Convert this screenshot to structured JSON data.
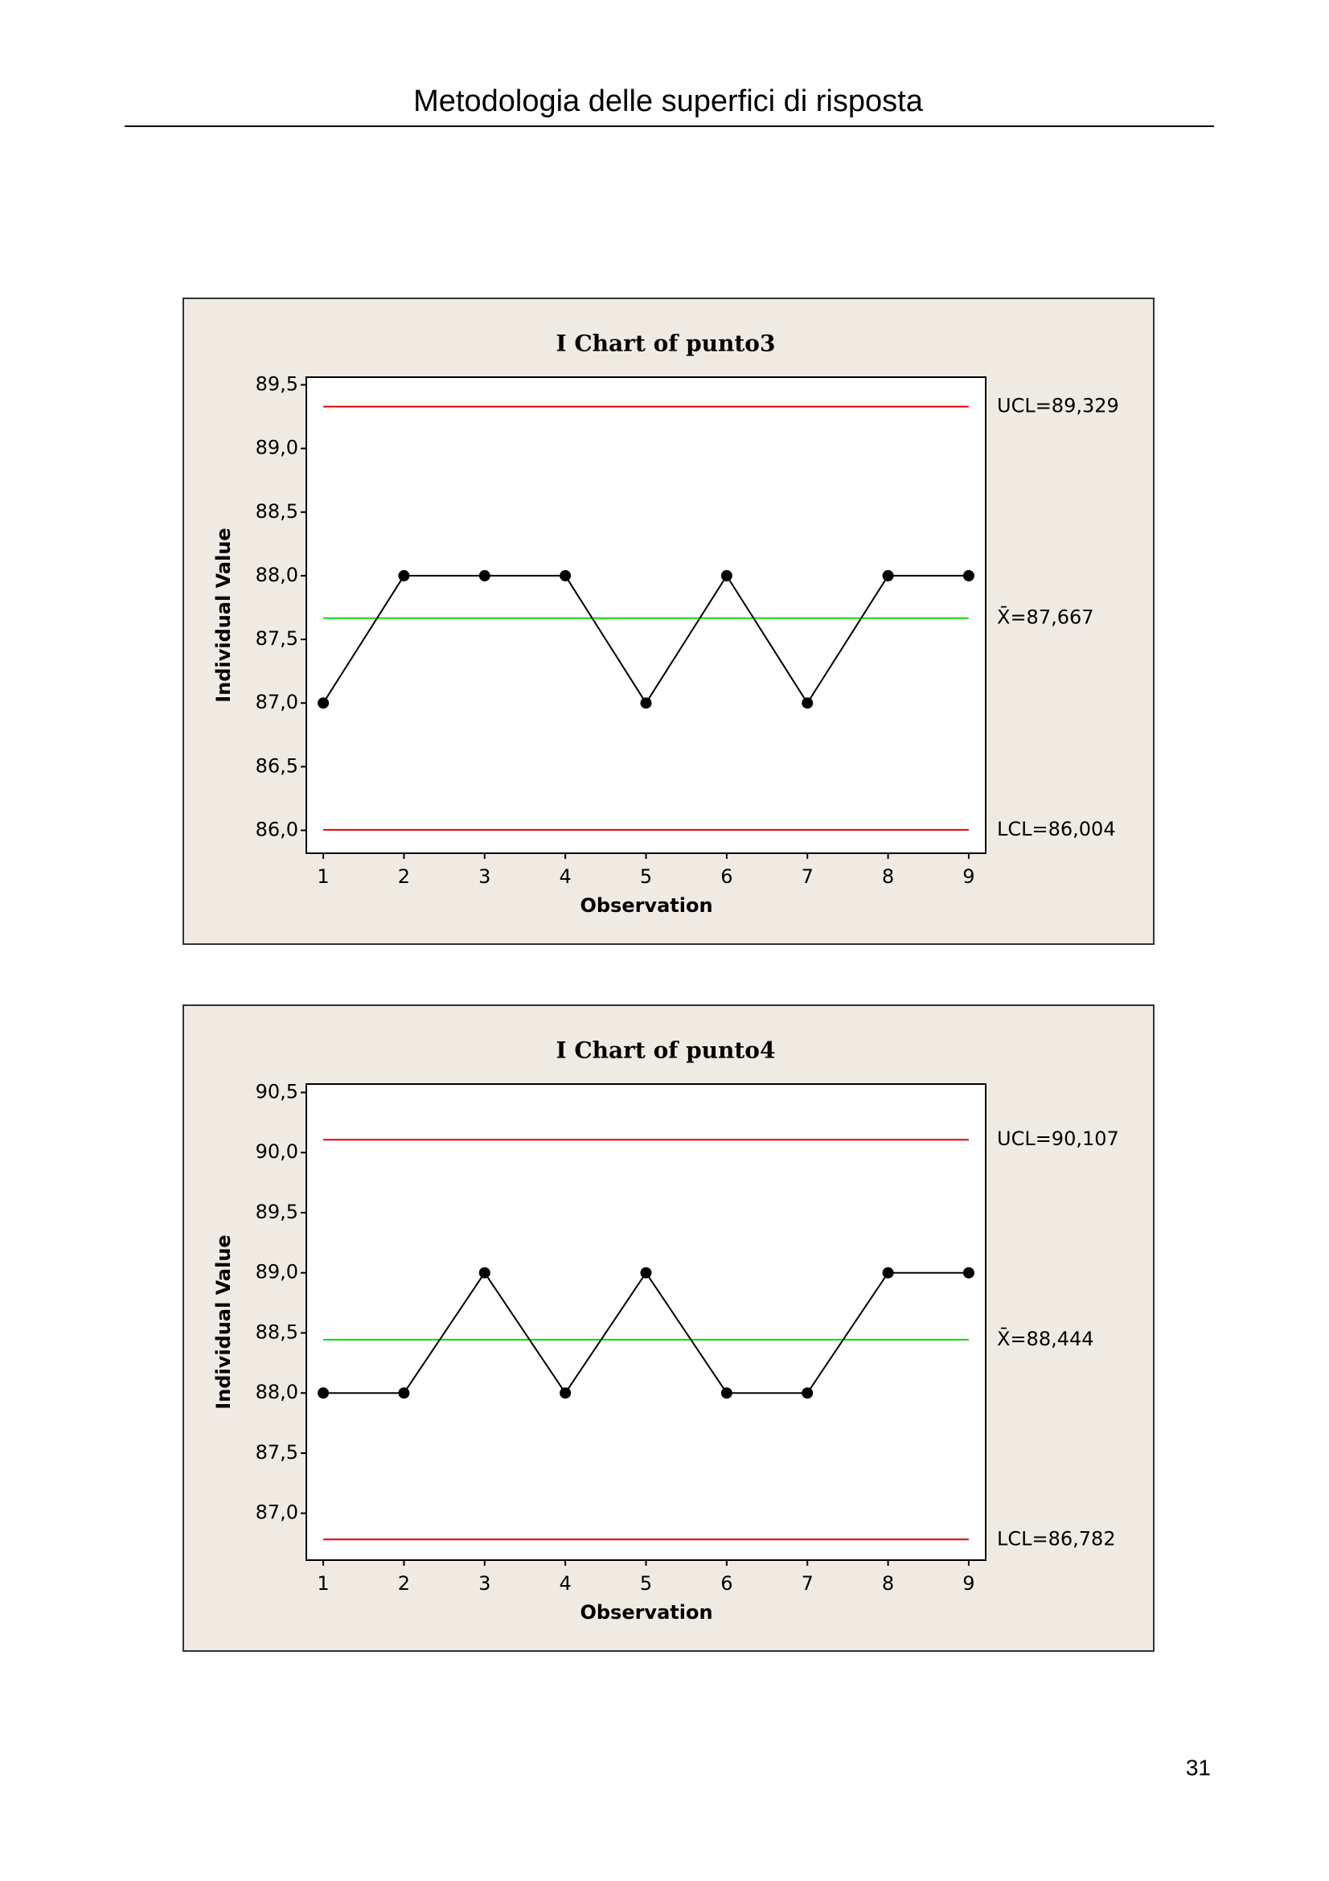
{
  "header": {
    "title": "Metodologia delle superfici di risposta"
  },
  "page_number": "31",
  "chart_data": [
    {
      "type": "line",
      "title": "I Chart of punto3",
      "x_label": "Observation",
      "y_label": "Individual Value",
      "x": [
        1,
        2,
        3,
        4,
        5,
        6,
        7,
        8,
        9
      ],
      "values": [
        87,
        88,
        88,
        88,
        87,
        88,
        87,
        88,
        88
      ],
      "color": "#000000",
      "xlim": [
        0.79,
        9.21
      ],
      "xticks": [
        1,
        2,
        3,
        4,
        5,
        6,
        7,
        8,
        9
      ],
      "ylim": [
        85.82,
        89.56
      ],
      "yticks": [
        {
          "value": 86.0,
          "label": "86,0"
        },
        {
          "value": 86.5,
          "label": "86,5"
        },
        {
          "value": 87.0,
          "label": "87,0"
        },
        {
          "value": 87.5,
          "label": "87,5"
        },
        {
          "value": 88.0,
          "label": "88,0"
        },
        {
          "value": 88.5,
          "label": "88,5"
        },
        {
          "value": 89.0,
          "label": "89,0"
        },
        {
          "value": 89.5,
          "label": "89,5"
        }
      ],
      "control_lines": [
        {
          "value": 89.329,
          "label": "UCL=89,329",
          "color": "#e00000"
        },
        {
          "value": 87.667,
          "label": "X̄=87,667",
          "color": "#00e000"
        },
        {
          "value": 86.004,
          "label": "LCL=86,004",
          "color": "#e00000"
        }
      ]
    },
    {
      "type": "line",
      "title": "I Chart of punto4",
      "x_label": "Observation",
      "y_label": "Individual Value",
      "x": [
        1,
        2,
        3,
        4,
        5,
        6,
        7,
        8,
        9
      ],
      "values": [
        88,
        88,
        89,
        88,
        89,
        88,
        88,
        89,
        89
      ],
      "color": "#000000",
      "xlim": [
        0.79,
        9.21
      ],
      "xticks": [
        1,
        2,
        3,
        4,
        5,
        6,
        7,
        8,
        9
      ],
      "ylim": [
        86.61,
        90.57
      ],
      "yticks": [
        {
          "value": 87.0,
          "label": "87,0"
        },
        {
          "value": 87.5,
          "label": "87,5"
        },
        {
          "value": 88.0,
          "label": "88,0"
        },
        {
          "value": 88.5,
          "label": "88,5"
        },
        {
          "value": 89.0,
          "label": "89,0"
        },
        {
          "value": 89.5,
          "label": "89,5"
        },
        {
          "value": 90.0,
          "label": "90,0"
        },
        {
          "value": 90.5,
          "label": "90,5"
        }
      ],
      "control_lines": [
        {
          "value": 90.107,
          "label": "UCL=90,107",
          "color": "#e00000"
        },
        {
          "value": 88.444,
          "label": "X̄=88,444",
          "color": "#00e000"
        },
        {
          "value": 86.782,
          "label": "LCL=86,782",
          "color": "#e00000"
        }
      ]
    }
  ]
}
